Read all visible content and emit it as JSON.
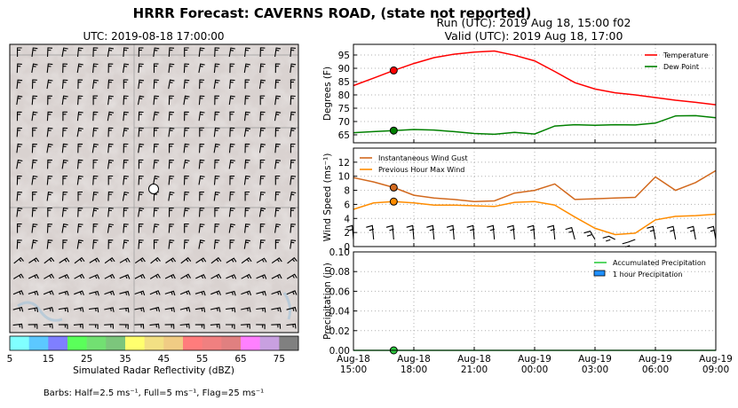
{
  "figure_title": "HRRR Forecast: CAVERNS ROAD, (state not reported)",
  "map": {
    "title": "UTC: 2019-08-18 17:00:00",
    "colorbar": {
      "label": "Simulated Radar Reflectivity (dBZ)",
      "tick_labels": [
        "5",
        "15",
        "25",
        "35",
        "45",
        "55",
        "65",
        "75"
      ],
      "colors": [
        "#80ffff",
        "#5cc8ff",
        "#7f7fff",
        "#5aff5a",
        "#72e072",
        "#7cc67c",
        "#ffff6e",
        "#f2e084",
        "#f0cc84",
        "#ff7c7c",
        "#f08080",
        "#e08080",
        "#ff80ff",
        "#c8a0e0",
        "#808080"
      ]
    },
    "barb_note": "Barbs: Half=2.5 ms⁻¹, Full=5 ms⁻¹, Flag=25 ms⁻¹"
  },
  "run_title": "Run (UTC): 2019 Aug 18, 15:00 f02",
  "valid_title": "Valid (UTC): 2019 Aug 18, 17:00",
  "x_tick_labels": [
    [
      "Aug-18",
      "15:00"
    ],
    [
      "Aug-18",
      "18:00"
    ],
    [
      "Aug-18",
      "21:00"
    ],
    [
      "Aug-19",
      "00:00"
    ],
    [
      "Aug-19",
      "03:00"
    ],
    [
      "Aug-19",
      "06:00"
    ],
    [
      "Aug-19",
      "09:00"
    ]
  ],
  "chart_data": [
    {
      "type": "line",
      "ylabel": "Degrees (F)",
      "ylim": [
        62,
        99
      ],
      "yticks": [
        65,
        70,
        75,
        80,
        85,
        90,
        95
      ],
      "xlim": [
        0,
        18
      ],
      "x_hours": [
        0,
        1,
        2,
        3,
        4,
        5,
        6,
        7,
        8,
        9,
        10,
        11,
        12,
        13,
        14,
        15,
        16,
        17,
        18
      ],
      "legend_position": "top-right",
      "series": [
        {
          "name": "Temperature",
          "color": "#ff0000",
          "values": [
            83.5,
            86.3,
            89.2,
            91.8,
            94.0,
            95.3,
            96.1,
            96.5,
            94.9,
            92.8,
            88.8,
            84.6,
            82.2,
            80.8,
            80.0,
            79.0,
            78.0,
            77.2,
            76.3
          ]
        },
        {
          "name": "Dew Point",
          "color": "#008000",
          "values": [
            65.8,
            66.2,
            66.6,
            67.0,
            66.8,
            66.2,
            65.5,
            65.2,
            65.9,
            65.3,
            68.3,
            68.8,
            68.6,
            68.8,
            68.7,
            69.4,
            72.1,
            72.2,
            71.4
          ]
        }
      ],
      "marker": {
        "x_hour": 2,
        "values": [
          89.2,
          66.6
        ]
      }
    },
    {
      "type": "line",
      "ylabel": "Wind Speed (ms⁻¹)",
      "ylim": [
        0,
        14
      ],
      "yticks": [
        0,
        2,
        4,
        6,
        8,
        10,
        12
      ],
      "xlim": [
        0,
        18
      ],
      "x_hours": [
        0,
        1,
        2,
        3,
        4,
        5,
        6,
        7,
        8,
        9,
        10,
        11,
        12,
        13,
        14,
        15,
        16,
        17,
        18
      ],
      "legend_position": "top-left",
      "series": [
        {
          "name": "Instantaneous Wind Gust",
          "color": "#d2691e",
          "values": [
            9.8,
            9.2,
            8.4,
            7.3,
            6.9,
            6.7,
            6.4,
            6.5,
            7.6,
            8.0,
            8.9,
            6.7,
            6.8,
            6.9,
            7.0,
            9.9,
            8.0,
            9.1,
            10.8
          ]
        },
        {
          "name": "Previous Hour Max Wind",
          "color": "#ff8c00",
          "values": [
            5.3,
            6.2,
            6.4,
            6.2,
            5.9,
            5.9,
            5.8,
            5.7,
            6.3,
            6.4,
            5.9,
            4.2,
            2.6,
            1.7,
            1.9,
            3.8,
            4.3,
            4.4,
            4.6
          ]
        }
      ],
      "marker": {
        "x_hour": 2,
        "values": [
          8.4,
          6.4
        ]
      },
      "barbs": {
        "x_hours": [
          0,
          1,
          2,
          3,
          4,
          5,
          6,
          7,
          8,
          9,
          10,
          11,
          12,
          13,
          14,
          15,
          16,
          17,
          18
        ]
      }
    },
    {
      "type": "line",
      "ylabel": "Precipitation (in)",
      "ylim": [
        0,
        0.1
      ],
      "yticks": [
        "0.00",
        "0.02",
        "0.04",
        "0.06",
        "0.08",
        "0.10"
      ],
      "xlim": [
        0,
        18
      ],
      "legend_position": "top-right",
      "series": [
        {
          "name": "Accumulated Precipitation",
          "color": "#2ecc40",
          "values": [
            0,
            0,
            0,
            0,
            0,
            0,
            0,
            0,
            0,
            0,
            0,
            0,
            0,
            0,
            0,
            0,
            0,
            0,
            0
          ]
        },
        {
          "name": "1 hour Precipitation",
          "color": "#1e90ff",
          "type": "bar",
          "values": [
            0,
            0,
            0,
            0,
            0,
            0,
            0,
            0,
            0,
            0,
            0,
            0,
            0,
            0,
            0,
            0,
            0,
            0
          ]
        }
      ],
      "marker": {
        "x_hour": 2,
        "values": [
          0
        ]
      }
    }
  ]
}
